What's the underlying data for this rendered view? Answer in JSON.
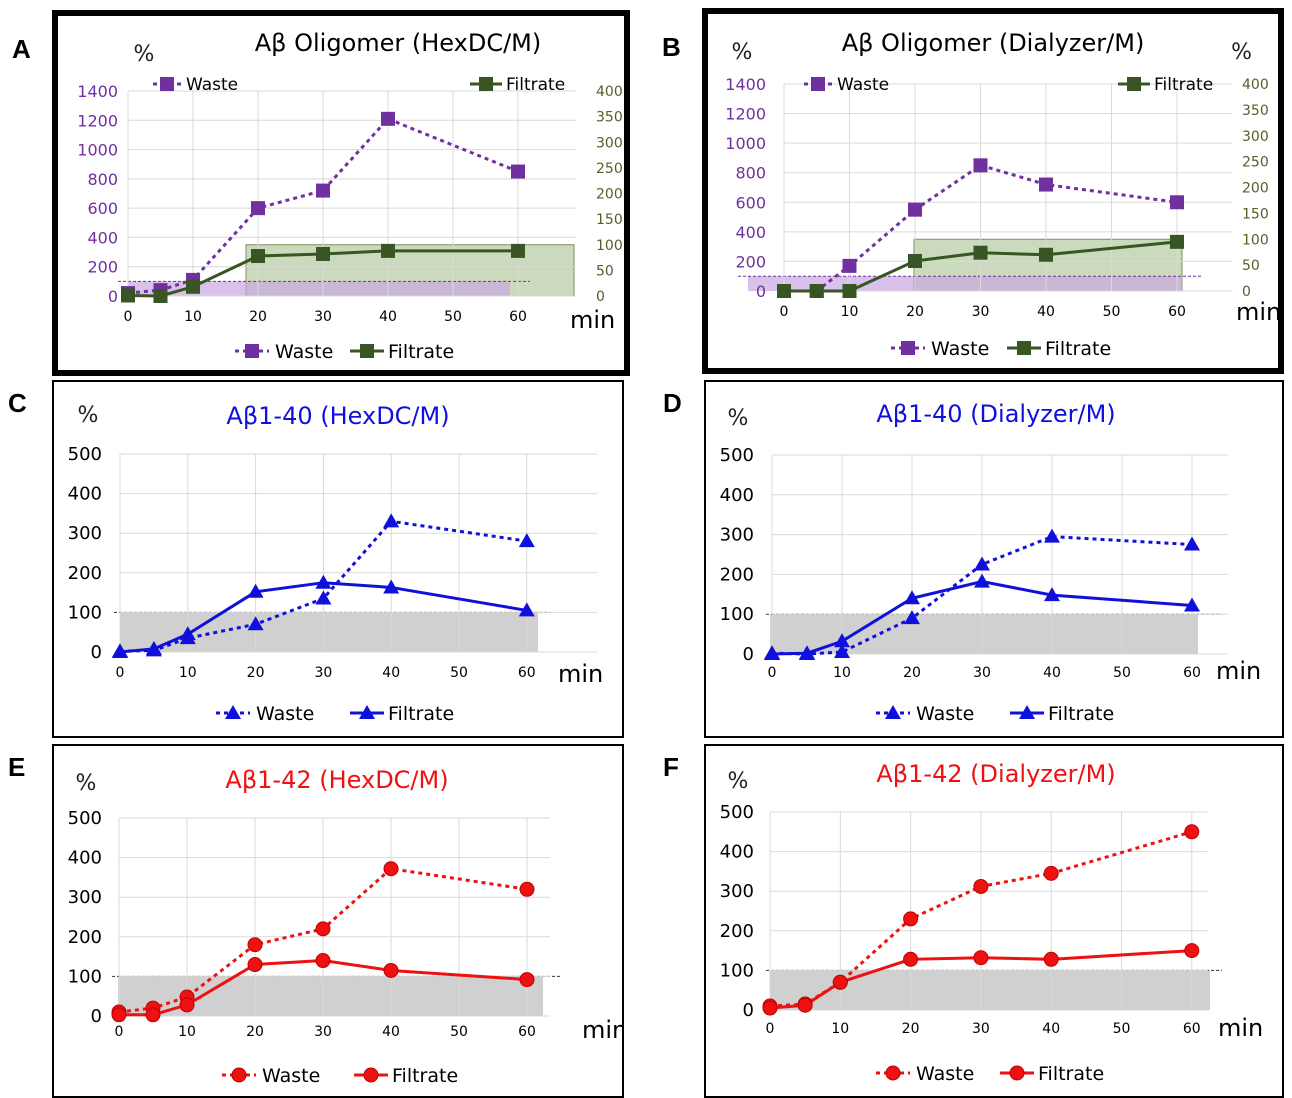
{
  "colors": {
    "purple": "#7030A0",
    "green": "#375623",
    "green_axis": "#4F6228",
    "blue": "#1010DD",
    "red": "#EE1111"
  },
  "chart_data": [
    {
      "id": "A",
      "panel_label": "A",
      "type": "line",
      "title": "Aβ Oligomer (HexDC/M)",
      "left_axis": {
        "label": "%",
        "ticks": [
          "1400",
          "1200",
          "1000",
          "800",
          "600",
          "400",
          "200",
          "0"
        ],
        "ylim": [
          0,
          1400
        ]
      },
      "right_axis": {
        "label": "%",
        "ticks": [
          "400",
          "350",
          "300",
          "250",
          "200",
          "150",
          "100",
          "50",
          "0"
        ],
        "ylim": [
          0,
          400
        ]
      },
      "x_ticks": [
        "0",
        "10",
        "20",
        "30",
        "40",
        "50",
        "60"
      ],
      "xlabel": "min",
      "xlim": [
        0,
        60
      ],
      "series": [
        {
          "name": "Waste",
          "axis": "left",
          "style": "dotted",
          "marker": "square",
          "x": [
            0,
            5,
            10,
            20,
            30,
            40,
            60
          ],
          "y": [
            20,
            40,
            110,
            600,
            720,
            1210,
            850
          ]
        },
        {
          "name": "Filtrate",
          "axis": "right",
          "style": "solid",
          "marker": "square",
          "x": [
            0,
            5,
            10,
            20,
            30,
            40,
            60
          ],
          "y": [
            1,
            0,
            18,
            78,
            82,
            88,
            88
          ]
        }
      ],
      "top_legend": {
        "waste": "Waste",
        "filtrate": "Filtrate"
      },
      "legend": {
        "waste": "Waste",
        "filtrate": "Filtrate"
      }
    },
    {
      "id": "B",
      "panel_label": "B",
      "type": "line",
      "title": "Aβ Oligomer (Dialyzer/M)",
      "left_axis": {
        "label": "%",
        "ticks": [
          "1400",
          "1200",
          "1000",
          "800",
          "600",
          "400",
          "200",
          "0"
        ],
        "ylim": [
          0,
          1400
        ]
      },
      "right_axis": {
        "label": "%",
        "ticks": [
          "400",
          "350",
          "300",
          "250",
          "200",
          "150",
          "100",
          "50",
          "0"
        ],
        "ylim": [
          0,
          400
        ]
      },
      "x_ticks": [
        "0",
        "10",
        "20",
        "30",
        "40",
        "50",
        "60"
      ],
      "xlabel": "min",
      "xlim": [
        0,
        60
      ],
      "series": [
        {
          "name": "Waste",
          "axis": "left",
          "style": "dotted",
          "marker": "square",
          "x": [
            0,
            5,
            10,
            20,
            30,
            40,
            60
          ],
          "y": [
            0,
            0,
            170,
            550,
            850,
            720,
            600
          ]
        },
        {
          "name": "Filtrate",
          "axis": "right",
          "style": "solid",
          "marker": "square",
          "x": [
            0,
            5,
            10,
            20,
            30,
            40,
            60
          ],
          "y": [
            0,
            0,
            0,
            58,
            74,
            70,
            95
          ]
        }
      ],
      "top_legend": {
        "waste": "Waste",
        "filtrate": "Filtrate"
      },
      "legend": {
        "waste": "Waste",
        "filtrate": "Filtrate"
      }
    },
    {
      "id": "C",
      "panel_label": "C",
      "type": "line",
      "title": "Aβ1-40 (HexDC/M)",
      "left_axis": {
        "label": "%",
        "ticks": [
          "500",
          "400",
          "300",
          "200",
          "100",
          "0"
        ],
        "ylim": [
          0,
          500
        ]
      },
      "x_ticks": [
        "0",
        "10",
        "20",
        "30",
        "40",
        "50",
        "60"
      ],
      "xlabel": "min",
      "xlim": [
        0,
        60
      ],
      "series": [
        {
          "name": "Waste",
          "style": "dotted",
          "marker": "triangle",
          "x": [
            0,
            5,
            10,
            20,
            30,
            40,
            60
          ],
          "y": [
            2,
            4,
            35,
            70,
            135,
            330,
            280
          ]
        },
        {
          "name": "Filtrate",
          "style": "solid",
          "marker": "triangle",
          "x": [
            0,
            5,
            10,
            20,
            30,
            40,
            60
          ],
          "y": [
            0,
            8,
            45,
            152,
            175,
            163,
            105
          ]
        }
      ],
      "legend": {
        "waste": "Waste",
        "filtrate": "Filtrate"
      }
    },
    {
      "id": "D",
      "panel_label": "D",
      "type": "line",
      "title": "Aβ1-40 (Dialyzer/M)",
      "left_axis": {
        "label": "%",
        "ticks": [
          "500",
          "400",
          "300",
          "200",
          "100",
          "0"
        ],
        "ylim": [
          0,
          500
        ]
      },
      "x_ticks": [
        "0",
        "10",
        "20",
        "30",
        "40",
        "50",
        "60"
      ],
      "xlabel": "min",
      "xlim": [
        0,
        60
      ],
      "series": [
        {
          "name": "Waste",
          "style": "dotted",
          "marker": "triangle",
          "x": [
            0,
            5,
            10,
            20,
            30,
            40,
            60
          ],
          "y": [
            2,
            0,
            5,
            90,
            225,
            295,
            275
          ]
        },
        {
          "name": "Filtrate",
          "style": "solid",
          "marker": "triangle",
          "x": [
            0,
            5,
            10,
            20,
            30,
            40,
            60
          ],
          "y": [
            0,
            2,
            32,
            140,
            182,
            148,
            122
          ]
        }
      ],
      "legend": {
        "waste": "Waste",
        "filtrate": "Filtrate"
      }
    },
    {
      "id": "E",
      "panel_label": "E",
      "type": "line",
      "title": "Aβ1-42 (HexDC/M)",
      "left_axis": {
        "label": "%",
        "ticks": [
          "500",
          "400",
          "300",
          "200",
          "100",
          "0"
        ],
        "ylim": [
          0,
          500
        ]
      },
      "x_ticks": [
        "0",
        "10",
        "20",
        "30",
        "40",
        "50",
        "60"
      ],
      "xlabel": "min",
      "xlim": [
        0,
        60
      ],
      "series": [
        {
          "name": "Waste",
          "style": "dotted",
          "marker": "circle",
          "x": [
            0,
            5,
            10,
            20,
            30,
            40,
            60
          ],
          "y": [
            10,
            20,
            48,
            180,
            220,
            372,
            320
          ]
        },
        {
          "name": "Filtrate",
          "style": "solid",
          "marker": "circle",
          "x": [
            0,
            5,
            10,
            20,
            30,
            40,
            60
          ],
          "y": [
            3,
            3,
            28,
            130,
            140,
            115,
            92
          ]
        }
      ],
      "legend": {
        "waste": "Waste",
        "filtrate": "Filtrate"
      }
    },
    {
      "id": "F",
      "panel_label": "F",
      "type": "line",
      "title": "Aβ1-42 (Dialyzer/M)",
      "left_axis": {
        "label": "%",
        "ticks": [
          "500",
          "400",
          "300",
          "200",
          "100",
          "0"
        ],
        "ylim": [
          0,
          500
        ]
      },
      "x_ticks": [
        "0",
        "10",
        "20",
        "30",
        "40",
        "50",
        "60"
      ],
      "xlabel": "min",
      "xlim": [
        0,
        60
      ],
      "series": [
        {
          "name": "Waste",
          "style": "dotted",
          "marker": "circle",
          "x": [
            0,
            5,
            10,
            20,
            30,
            40,
            60
          ],
          "y": [
            10,
            15,
            70,
            230,
            312,
            345,
            450
          ]
        },
        {
          "name": "Filtrate",
          "style": "solid",
          "marker": "circle",
          "x": [
            0,
            5,
            10,
            20,
            30,
            40,
            60
          ],
          "y": [
            5,
            12,
            70,
            128,
            132,
            128,
            150
          ]
        }
      ],
      "legend": {
        "waste": "Waste",
        "filtrate": "Filtrate"
      }
    }
  ]
}
